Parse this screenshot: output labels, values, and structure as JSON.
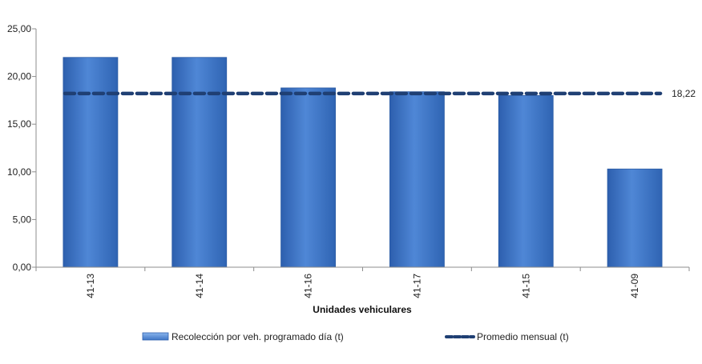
{
  "chart_data": {
    "type": "bar",
    "categories": [
      "41-13",
      "41-14",
      "41-16",
      "41-17",
      "41-15",
      "41-09"
    ],
    "series": [
      {
        "name": "Recolección por veh. programado día (t)",
        "type": "bar",
        "values": [
          22.0,
          22.0,
          18.8,
          18.4,
          18.0,
          10.3
        ],
        "color": "#3f76c6"
      },
      {
        "name": "Promedio mensual (t)",
        "type": "line",
        "style": "dashed",
        "values": [
          18.22,
          18.22,
          18.22,
          18.22,
          18.22,
          18.22
        ],
        "color": "#1f3f73"
      }
    ],
    "line_label": "18,22",
    "title": "",
    "xlabel": "Unidades vehiculares",
    "ylabel": "",
    "ylim": [
      0,
      25
    ],
    "yticks": [
      "0,00",
      "5,00",
      "10,00",
      "15,00",
      "20,00",
      "25,00"
    ],
    "ytick_values": [
      0,
      5,
      10,
      15,
      20,
      25
    ],
    "grid": false,
    "legend_position": "bottom"
  }
}
